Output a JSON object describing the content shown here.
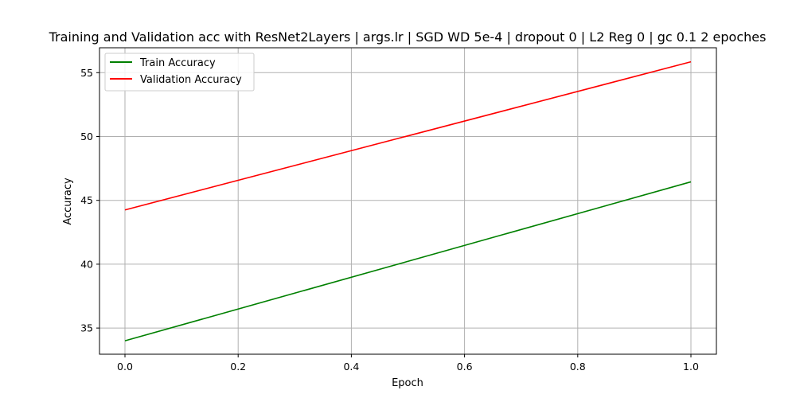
{
  "chart_data": {
    "type": "line",
    "title": "Training and Validation acc with ResNet2Layers | args.lr | SGD WD 5e-4 | dropout 0 | L2 Reg 0 | gc 0.1 2 epoches",
    "xlabel": "Epoch",
    "ylabel": "Accuracy",
    "xlim": [
      -0.045,
      1.045
    ],
    "ylim": [
      32.95,
      56.95
    ],
    "xticks": [
      "0.0",
      "0.2",
      "0.4",
      "0.6",
      "0.8",
      "1.0"
    ],
    "yticks": [
      "35",
      "40",
      "45",
      "50",
      "55"
    ],
    "grid": true,
    "legend_position": "top-left",
    "x": [
      0,
      1
    ],
    "series": [
      {
        "name": "Train Accuracy",
        "color": "#008000",
        "values": [
          34.0,
          46.45
        ]
      },
      {
        "name": "Validation Accuracy",
        "color": "#ff0000",
        "values": [
          44.25,
          55.85
        ]
      }
    ]
  }
}
